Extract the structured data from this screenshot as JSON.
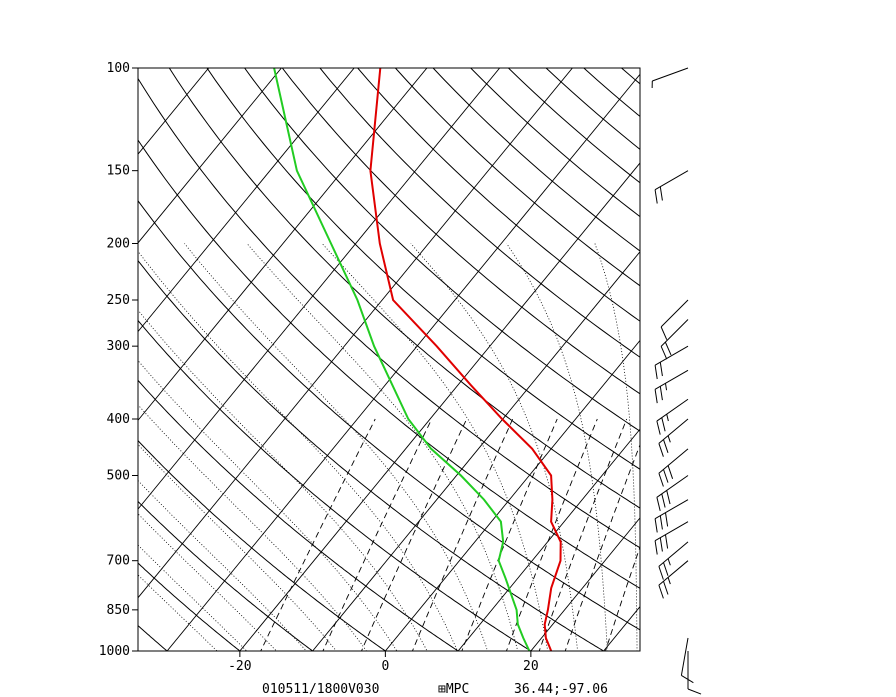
{
  "chart_data": {
    "type": "line",
    "title": "",
    "xlabel": "",
    "ylabel": "",
    "pressure_ticks": [
      100,
      150,
      200,
      250,
      300,
      400,
      500,
      700,
      850,
      1000
    ],
    "temperature_ticks": [
      -20,
      0,
      20
    ],
    "xlim": [
      -34,
      35
    ],
    "ylim": [
      1000,
      100
    ],
    "log_pressure": true,
    "skew": true,
    "series": [
      {
        "color": "#e00000",
        "points": [
          {
            "p": 1000,
            "t": 22.8
          },
          {
            "p": 950,
            "t": 20.6
          },
          {
            "p": 900,
            "t": 18.9
          },
          {
            "p": 850,
            "t": 17.7
          },
          {
            "p": 780,
            "t": 15.7
          },
          {
            "p": 700,
            "t": 13.9
          },
          {
            "p": 650,
            "t": 11.8
          },
          {
            "p": 600,
            "t": 8.2
          },
          {
            "p": 550,
            "t": 5.9
          },
          {
            "p": 500,
            "t": 3.0
          },
          {
            "p": 450,
            "t": -2.6
          },
          {
            "p": 400,
            "t": -10.1
          },
          {
            "p": 350,
            "t": -18.2
          },
          {
            "p": 300,
            "t": -27.3
          },
          {
            "p": 250,
            "t": -38.5
          },
          {
            "p": 200,
            "t": -46.7
          },
          {
            "p": 150,
            "t": -56.2
          },
          {
            "p": 100,
            "t": -66.4
          }
        ]
      },
      {
        "color": "#22cc22",
        "points": [
          {
            "p": 1000,
            "t": 19.8
          },
          {
            "p": 950,
            "t": 17.5
          },
          {
            "p": 900,
            "t": 15.2
          },
          {
            "p": 850,
            "t": 13.4
          },
          {
            "p": 750,
            "t": 8.3
          },
          {
            "p": 700,
            "t": 5.4
          },
          {
            "p": 650,
            "t": 3.9
          },
          {
            "p": 600,
            "t": 1.3
          },
          {
            "p": 550,
            "t": -3.5
          },
          {
            "p": 500,
            "t": -9.4
          },
          {
            "p": 450,
            "t": -16.5
          },
          {
            "p": 400,
            "t": -23.0
          },
          {
            "p": 300,
            "t": -35.9
          },
          {
            "p": 250,
            "t": -43.4
          },
          {
            "p": 200,
            "t": -53.4
          },
          {
            "p": 150,
            "t": -66.3
          },
          {
            "p": 100,
            "t": -81.0
          }
        ]
      }
    ],
    "wind_barbs": [
      {
        "p": 1000,
        "dir": 180,
        "speed": 10
      },
      {
        "p": 950,
        "dir": 190,
        "speed": 10
      },
      {
        "p": 700,
        "dir": 230,
        "speed": 25
      },
      {
        "p": 650,
        "dir": 230,
        "speed": 25
      },
      {
        "p": 600,
        "dir": 240,
        "speed": 30
      },
      {
        "p": 550,
        "dir": 240,
        "speed": 30
      },
      {
        "p": 500,
        "dir": 235,
        "speed": 30
      },
      {
        "p": 450,
        "dir": 230,
        "speed": 30
      },
      {
        "p": 400,
        "dir": 230,
        "speed": 25
      },
      {
        "p": 370,
        "dir": 235,
        "speed": 25
      },
      {
        "p": 330,
        "dir": 240,
        "speed": 25
      },
      {
        "p": 300,
        "dir": 240,
        "speed": 20
      },
      {
        "p": 270,
        "dir": 225,
        "speed": 20
      },
      {
        "p": 250,
        "dir": 225,
        "speed": 10
      },
      {
        "p": 150,
        "dir": 240,
        "speed": 20
      },
      {
        "p": 100,
        "dir": 250,
        "speed": 5
      }
    ]
  },
  "footer": {
    "datetime": "010511/1800V030",
    "source": "⊞MPC",
    "location": "36.44;-97.06"
  }
}
